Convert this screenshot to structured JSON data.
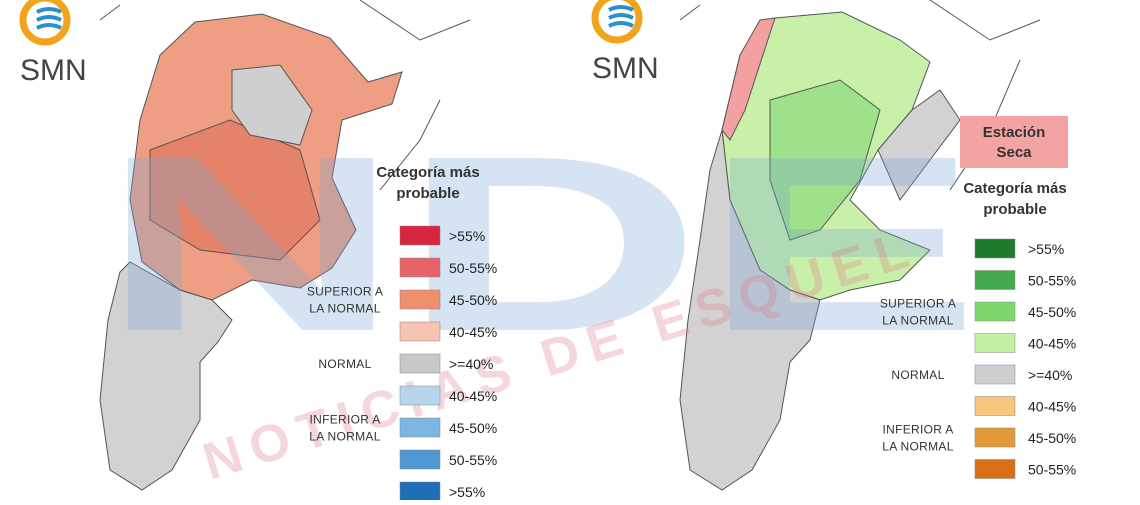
{
  "watermark": {
    "logo": "NDE",
    "text": "NOTICIAS DE ESQUEL"
  },
  "panels": [
    {
      "logo": "SMN",
      "legend": {
        "title": [
          "Categoría más",
          "probable"
        ],
        "items": [
          {
            "label": ">55%",
            "color": "#d7263d"
          },
          {
            "label": "50-55%",
            "color": "#e8636a"
          },
          {
            "label": "45-50%",
            "color": "#ee8f6e"
          },
          {
            "label": "40-45%",
            "color": "#f6c4b0"
          },
          {
            "label": ">=40%",
            "color": "#c8c8c8"
          },
          {
            "label": "40-45%",
            "color": "#b6d5ec"
          },
          {
            "label": "45-50%",
            "color": "#7db6e0"
          },
          {
            "label": "50-55%",
            "color": "#4d97d3"
          },
          {
            "label": ">55%",
            "color": "#1f6fb8"
          }
        ],
        "groups": [
          {
            "lines": [
              "SUPERIOR A",
              "LA NORMAL"
            ],
            "item": 2
          },
          {
            "lines": [
              "NORMAL"
            ],
            "item": 4
          },
          {
            "lines": [
              "INFERIOR A",
              "LA NORMAL"
            ],
            "item": 6
          }
        ]
      }
    },
    {
      "logo": "SMN",
      "badge": [
        "Estación",
        "Seca"
      ],
      "legend": {
        "title": [
          "Categoría más",
          "probable"
        ],
        "items": [
          {
            "label": ">55%",
            "color": "#1e7b2e"
          },
          {
            "label": "50-55%",
            "color": "#44a84c"
          },
          {
            "label": "45-50%",
            "color": "#7fd66c"
          },
          {
            "label": "40-45%",
            "color": "#c4f0a4"
          },
          {
            "label": ">=40%",
            "color": "#cfcfcf"
          },
          {
            "label": "40-45%",
            "color": "#f6c67a"
          },
          {
            "label": "45-50%",
            "color": "#e39a3a"
          },
          {
            "label": "50-55%",
            "color": "#d96e16"
          }
        ],
        "groups": [
          {
            "lines": [
              "SUPERIOR A",
              "LA NORMAL"
            ],
            "item": 2
          },
          {
            "lines": [
              "NORMAL"
            ],
            "item": 4
          },
          {
            "lines": [
              "INFERIOR A",
              "LA NORMAL"
            ],
            "item": 6
          }
        ]
      }
    }
  ]
}
